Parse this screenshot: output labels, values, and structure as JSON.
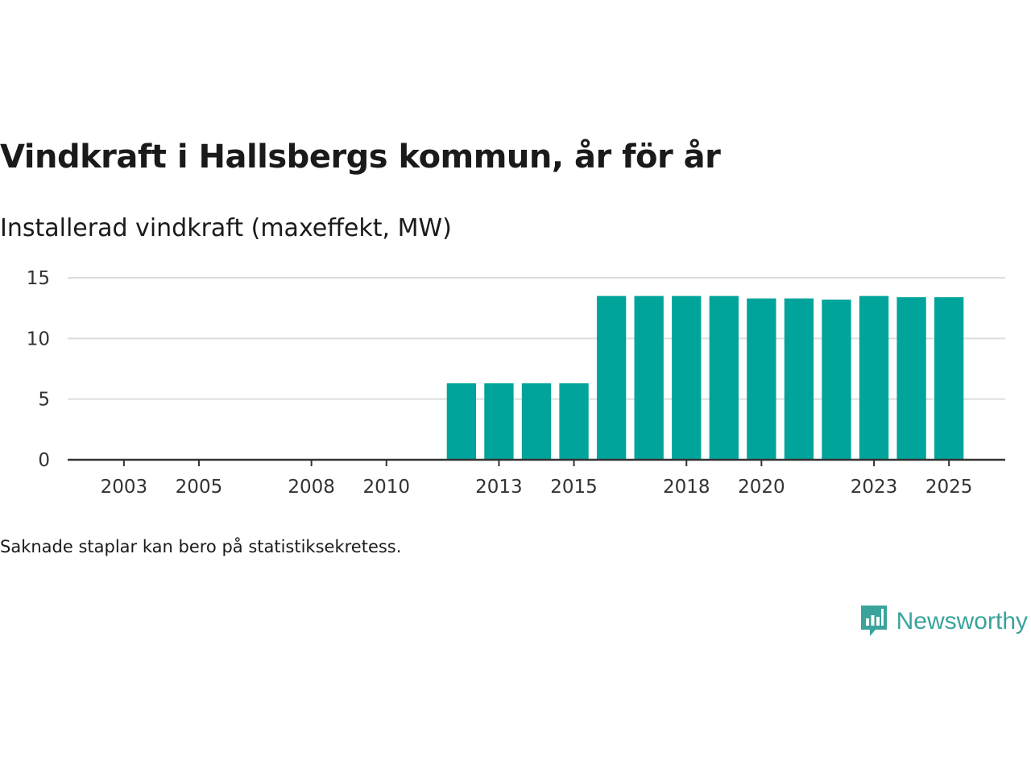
{
  "header": {
    "title": "Vindkraft i Hallsbergs kommun, år för år",
    "subtitle": "Installerad vindkraft (maxeffekt, MW)"
  },
  "footer": {
    "note": "Saknade staplar kan bero på statistiksekretess.",
    "brand": "Newsworthy"
  },
  "colors": {
    "bar": "#00a49a",
    "grid": "#dddddd",
    "axis": "#333333",
    "brand": "#3aa39b"
  },
  "chart_data": {
    "type": "bar",
    "title": "Vindkraft i Hallsbergs kommun, år för år",
    "ylabel": "Installerad vindkraft (maxeffekt, MW)",
    "xlabel": "",
    "ylim": [
      0,
      15
    ],
    "yticks": [
      0,
      5,
      10,
      15
    ],
    "xticks": [
      2003,
      2005,
      2008,
      2010,
      2013,
      2015,
      2018,
      2020,
      2023,
      2025
    ],
    "xlim": [
      2001.5,
      2026.5
    ],
    "categories": [
      2012,
      2013,
      2014,
      2015,
      2016,
      2017,
      2018,
      2019,
      2020,
      2021,
      2022,
      2023,
      2024,
      2025
    ],
    "values": [
      6.3,
      6.3,
      6.3,
      6.3,
      13.5,
      13.5,
      13.5,
      13.5,
      13.3,
      13.3,
      13.2,
      13.5,
      13.4,
      13.4
    ],
    "grid": true,
    "note": "Saknade staplar kan bero på statistiksekretess."
  }
}
